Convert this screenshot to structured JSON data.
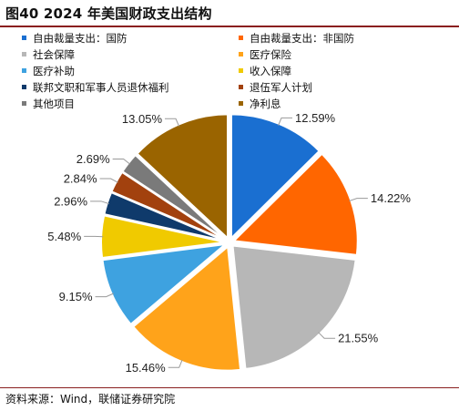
{
  "title": "图40 2024 年美国财政支出结构",
  "source": "资料来源：Wind，联储证券研究院",
  "colors": {
    "accent_rule": "#8a1f1f"
  },
  "chart_data": {
    "type": "pie",
    "legend_placement": "top",
    "categories": [
      "自由裁量支出：国防",
      "自由裁量支出：非国防",
      "社会保障",
      "医疗保险",
      "医疗补助",
      "收入保障",
      "联邦文职和军事人员退休福利",
      "退伍军人计划",
      "其他项目",
      "净利息"
    ],
    "values": [
      12.59,
      14.22,
      21.55,
      15.46,
      9.15,
      5.48,
      2.96,
      2.84,
      2.69,
      13.05
    ],
    "labels": [
      "12.59%",
      "14.22%",
      "21.55%",
      "15.46%",
      "9.15%",
      "5.48%",
      "2.96%",
      "2.84%",
      "2.69%",
      "13.05%"
    ],
    "colors": [
      "#1a6fd1",
      "#ff6600",
      "#b7b7b7",
      "#ffa31a",
      "#3ea2e0",
      "#f0ca00",
      "#0f3a6b",
      "#a2410e",
      "#7a7a7a",
      "#9a6400"
    ],
    "exploded": true
  }
}
